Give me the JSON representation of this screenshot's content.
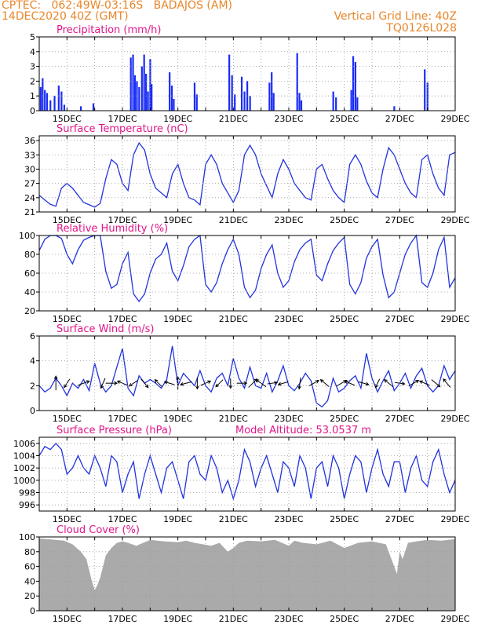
{
  "header": {
    "line1_left": "CPTEC:   062:49W-03:16S   BADAJOS (AM)",
    "line2_left": "14DEC2020 40Z (GMT)",
    "line2_right": "Vertical Grid Line: 40Z",
    "line3_right": "TQ0126L028",
    "model_altitude": "Model Altitude: 53.0537 m"
  },
  "colors": {
    "header": "#e8862a",
    "title": "#e0168a",
    "line": "#2233dd",
    "bar": "#1a2cf5",
    "cloud": "#aaaaaa",
    "grid": "#999999"
  },
  "x_axis": {
    "ticks": [
      {
        "label": "15DEC",
        "day": 1
      },
      {
        "label": "17DEC",
        "day": 3
      },
      {
        "label": "19DEC",
        "day": 5
      },
      {
        "label": "21DEC",
        "day": 7
      },
      {
        "label": "23DEC",
        "day": 9
      },
      {
        "label": "25DEC",
        "day": 11
      },
      {
        "label": "27DEC",
        "day": 13
      },
      {
        "label": "29DEC",
        "day": 15
      }
    ],
    "range": [
      0,
      15
    ]
  },
  "chart_data": [
    {
      "type": "bar",
      "title": "Precipitation (mm/h)",
      "ylim": [
        0,
        5
      ],
      "yticks": [
        0,
        1,
        2,
        3,
        4,
        5
      ],
      "x": [
        0.05,
        0.12,
        0.2,
        0.28,
        0.4,
        0.55,
        0.7,
        0.8,
        0.9,
        1.5,
        1.95,
        3.3,
        3.38,
        3.45,
        3.52,
        3.6,
        3.7,
        3.78,
        3.85,
        3.92,
        4.0,
        4.05,
        4.7,
        4.78,
        4.85,
        5.6,
        5.68,
        6.85,
        6.95,
        7.05,
        7.3,
        7.4,
        7.5,
        7.6,
        8.3,
        8.38,
        8.45,
        9.3,
        9.38,
        9.45,
        10.6,
        10.7,
        11.25,
        11.32,
        11.4,
        11.47,
        12.8,
        13.9,
        14.0
      ],
      "values": [
        1.6,
        2.2,
        1.4,
        1.2,
        0.7,
        1.0,
        1.7,
        1.3,
        0.4,
        0.3,
        0.5,
        3.6,
        3.8,
        2.4,
        2.0,
        1.6,
        3.0,
        3.8,
        2.5,
        1.3,
        3.5,
        1.8,
        2.6,
        1.7,
        0.8,
        1.9,
        1.1,
        3.8,
        2.4,
        1.1,
        2.3,
        1.3,
        2.0,
        1.0,
        1.9,
        2.6,
        1.2,
        3.9,
        1.2,
        0.7,
        1.3,
        0.9,
        1.4,
        3.7,
        3.3,
        0.9,
        0.3,
        2.8,
        1.9
      ]
    },
    {
      "type": "line",
      "title": "Surface Temperature (nC)",
      "ylim": [
        21,
        37
      ],
      "yticks": [
        21,
        24,
        27,
        30,
        33,
        36
      ],
      "x": [
        0,
        0.2,
        0.4,
        0.6,
        0.8,
        1.0,
        1.2,
        1.4,
        1.6,
        1.8,
        2.0,
        2.2,
        2.4,
        2.6,
        2.8,
        3.0,
        3.2,
        3.4,
        3.6,
        3.8,
        4.0,
        4.2,
        4.4,
        4.6,
        4.8,
        5.0,
        5.2,
        5.4,
        5.6,
        5.8,
        6.0,
        6.2,
        6.4,
        6.6,
        6.8,
        7.0,
        7.2,
        7.4,
        7.6,
        7.8,
        8.0,
        8.2,
        8.4,
        8.6,
        8.8,
        9.0,
        9.2,
        9.4,
        9.6,
        9.8,
        10.0,
        10.2,
        10.4,
        10.6,
        10.8,
        11.0,
        11.2,
        11.4,
        11.6,
        11.8,
        12.0,
        12.2,
        12.4,
        12.6,
        12.8,
        13.0,
        13.2,
        13.4,
        13.6,
        13.8,
        14.0,
        14.2,
        14.4,
        14.6,
        14.8,
        15.0
      ],
      "values": [
        24.5,
        23.5,
        22.6,
        22.2,
        26,
        27,
        26,
        24.5,
        23,
        22.5,
        22,
        22.8,
        28,
        32,
        31,
        27,
        25.5,
        33,
        35.5,
        34,
        29,
        26,
        25,
        24,
        29,
        31,
        27,
        24,
        23.5,
        22.5,
        31,
        33,
        31,
        27,
        25,
        23,
        25.5,
        33,
        35,
        33,
        29,
        26.5,
        24,
        29,
        32,
        30,
        27,
        25.5,
        24,
        23.5,
        30,
        31,
        28,
        25.5,
        24,
        23,
        31,
        33,
        31,
        27.5,
        25,
        24,
        30,
        34.5,
        33,
        30,
        27,
        25,
        24,
        32,
        33,
        29,
        26,
        24.5,
        33,
        33.5
      ],
      "series_color": "line"
    },
    {
      "type": "line",
      "title": "Relative Humidity (%)",
      "ylim": [
        20,
        100
      ],
      "yticks": [
        20,
        40,
        60,
        80,
        100
      ],
      "x": [
        0,
        0.2,
        0.4,
        0.6,
        0.8,
        1.0,
        1.2,
        1.4,
        1.6,
        1.8,
        2.0,
        2.2,
        2.4,
        2.6,
        2.8,
        3.0,
        3.2,
        3.4,
        3.6,
        3.8,
        4.0,
        4.2,
        4.4,
        4.6,
        4.8,
        5.0,
        5.2,
        5.4,
        5.6,
        5.8,
        6.0,
        6.2,
        6.4,
        6.6,
        6.8,
        7.0,
        7.2,
        7.4,
        7.6,
        7.8,
        8.0,
        8.2,
        8.4,
        8.6,
        8.8,
        9.0,
        9.2,
        9.4,
        9.6,
        9.8,
        10.0,
        10.2,
        10.4,
        10.6,
        10.8,
        11.0,
        11.2,
        11.4,
        11.6,
        11.8,
        12.0,
        12.2,
        12.4,
        12.6,
        12.8,
        13.0,
        13.2,
        13.4,
        13.6,
        13.8,
        14.0,
        14.2,
        14.4,
        14.6,
        14.8,
        15.0
      ],
      "values": [
        84,
        96,
        100,
        100,
        97,
        80,
        70,
        85,
        95,
        98,
        100,
        100,
        62,
        44,
        48,
        70,
        82,
        38,
        30,
        38,
        60,
        75,
        80,
        92,
        62,
        52,
        68,
        88,
        96,
        100,
        48,
        40,
        50,
        70,
        85,
        96,
        80,
        45,
        34,
        42,
        65,
        80,
        90,
        60,
        45,
        52,
        72,
        85,
        92,
        96,
        58,
        52,
        70,
        84,
        92,
        98,
        48,
        38,
        50,
        76,
        88,
        96,
        58,
        34,
        40,
        60,
        80,
        92,
        100,
        50,
        45,
        60,
        85,
        98,
        45,
        55
      ],
      "series_color": "line"
    },
    {
      "type": "line",
      "title": "Surface Wind (m/s)",
      "ylim": [
        0,
        6
      ],
      "yticks": [
        0,
        2,
        4,
        6
      ],
      "x": [
        0,
        0.2,
        0.4,
        0.6,
        0.8,
        1.0,
        1.2,
        1.4,
        1.6,
        1.8,
        2.0,
        2.2,
        2.4,
        2.6,
        2.8,
        3.0,
        3.2,
        3.4,
        3.6,
        3.8,
        4.0,
        4.2,
        4.4,
        4.6,
        4.8,
        5.0,
        5.2,
        5.4,
        5.6,
        5.8,
        6.0,
        6.2,
        6.4,
        6.6,
        6.8,
        7.0,
        7.2,
        7.4,
        7.6,
        7.8,
        8.0,
        8.2,
        8.4,
        8.6,
        8.8,
        9.0,
        9.2,
        9.4,
        9.6,
        9.8,
        10.0,
        10.2,
        10.4,
        10.6,
        10.8,
        11.0,
        11.2,
        11.4,
        11.6,
        11.8,
        12.0,
        12.2,
        12.4,
        12.6,
        12.8,
        13.0,
        13.2,
        13.4,
        13.6,
        13.8,
        14.0,
        14.2,
        14.4,
        14.6,
        14.8,
        15.0
      ],
      "values": [
        2.0,
        1.5,
        1.8,
        2.6,
        2.0,
        1.2,
        2.2,
        1.8,
        2.5,
        1.6,
        3.8,
        2.2,
        1.5,
        2.0,
        3.5,
        5.0,
        1.8,
        1.2,
        2.8,
        2.2,
        2.5,
        2.2,
        1.8,
        2.5,
        5.2,
        2.0,
        3.0,
        2.5,
        2.0,
        3.2,
        2.0,
        1.5,
        2.6,
        3.0,
        2.0,
        4.2,
        2.6,
        1.8,
        3.5,
        2.0,
        1.8,
        3.0,
        1.5,
        2.4,
        3.6,
        2.0,
        1.6,
        2.2,
        3.0,
        2.4,
        0.6,
        0.3,
        0.8,
        2.6,
        1.5,
        1.8,
        2.4,
        2.8,
        1.8,
        4.6,
        2.6,
        1.5,
        2.4,
        3.2,
        1.6,
        2.2,
        3.0,
        1.8,
        2.8,
        3.4,
        2.0,
        1.5,
        2.0,
        3.6,
        2.5,
        3.2
      ],
      "vectors": [
        {
          "day": 0.6,
          "dx": 0,
          "dy": -1
        },
        {
          "day": 1.0,
          "dx": -0.4,
          "dy": 0.6
        },
        {
          "day": 1.6,
          "dx": 0.8,
          "dy": -0.3
        },
        {
          "day": 2.3,
          "dx": -0.3,
          "dy": 0.7
        },
        {
          "day": 2.6,
          "dx": 0.8,
          "dy": 0
        },
        {
          "day": 3.0,
          "dx": -0.7,
          "dy": -0.3
        },
        {
          "day": 3.4,
          "dx": -0.6,
          "dy": 0.4
        },
        {
          "day": 3.8,
          "dx": 0.5,
          "dy": 0.6
        },
        {
          "day": 4.3,
          "dx": -0.5,
          "dy": -0.5
        },
        {
          "day": 4.7,
          "dx": -0.7,
          "dy": -0.2
        },
        {
          "day": 5.0,
          "dx": 0,
          "dy": -0.9
        },
        {
          "day": 5.3,
          "dx": -0.8,
          "dy": 0.2
        },
        {
          "day": 5.7,
          "dx": 0,
          "dy": 0.8
        },
        {
          "day": 6.0,
          "dx": 0.7,
          "dy": -0.3
        },
        {
          "day": 6.5,
          "dx": -0.5,
          "dy": 0.5
        },
        {
          "day": 6.9,
          "dx": 0,
          "dy": 0.7
        },
        {
          "day": 7.3,
          "dx": 0.7,
          "dy": 0
        },
        {
          "day": 7.7,
          "dx": 0.6,
          "dy": -0.6
        },
        {
          "day": 8.0,
          "dx": -0.7,
          "dy": -0.5
        },
        {
          "day": 8.4,
          "dx": 0.7,
          "dy": -0.1
        },
        {
          "day": 8.8,
          "dx": -0.7,
          "dy": 0.2
        },
        {
          "day": 9.4,
          "dx": -0.1,
          "dy": 0.8
        },
        {
          "day": 9.9,
          "dx": 0.7,
          "dy": -0.4
        },
        {
          "day": 10.3,
          "dx": -0.6,
          "dy": -0.5
        },
        {
          "day": 10.9,
          "dx": 0.7,
          "dy": -0.4
        },
        {
          "day": 11.2,
          "dx": -0.7,
          "dy": -0.3
        },
        {
          "day": 11.7,
          "dx": 0.7,
          "dy": 0.2
        },
        {
          "day": 12.2,
          "dx": -0.3,
          "dy": 0.6
        },
        {
          "day": 12.6,
          "dx": -0.6,
          "dy": -0.5
        },
        {
          "day": 13.0,
          "dx": 0.7,
          "dy": 0.1
        },
        {
          "day": 13.5,
          "dx": 0.7,
          "dy": -0.4
        },
        {
          "day": 13.9,
          "dx": -0.7,
          "dy": -0.3
        },
        {
          "day": 14.3,
          "dx": 0.6,
          "dy": 0.5
        },
        {
          "day": 14.7,
          "dx": -0.5,
          "dy": -0.6
        }
      ],
      "series_color": "line"
    },
    {
      "type": "line",
      "title": "Surface Pressure (hPa)",
      "ylim": [
        995,
        1007
      ],
      "yticks": [
        996,
        998,
        1000,
        1002,
        1004,
        1006
      ],
      "x": [
        0,
        0.2,
        0.4,
        0.6,
        0.8,
        1.0,
        1.2,
        1.4,
        1.6,
        1.8,
        2.0,
        2.2,
        2.4,
        2.6,
        2.8,
        3.0,
        3.2,
        3.4,
        3.6,
        3.8,
        4.0,
        4.2,
        4.4,
        4.6,
        4.8,
        5.0,
        5.2,
        5.4,
        5.6,
        5.8,
        6.0,
        6.2,
        6.4,
        6.6,
        6.8,
        7.0,
        7.2,
        7.4,
        7.6,
        7.8,
        8.0,
        8.2,
        8.4,
        8.6,
        8.8,
        9.0,
        9.2,
        9.4,
        9.6,
        9.8,
        10.0,
        10.2,
        10.4,
        10.6,
        10.8,
        11.0,
        11.2,
        11.4,
        11.6,
        11.8,
        12.0,
        12.2,
        12.4,
        12.6,
        12.8,
        13.0,
        13.2,
        13.4,
        13.6,
        13.8,
        14.0,
        14.2,
        14.4,
        14.6,
        14.8,
        15.0
      ],
      "values": [
        1004,
        1005.5,
        1005,
        1006,
        1005,
        1001,
        1002,
        1004,
        1002,
        1001,
        1004,
        1002,
        999,
        1004,
        1003,
        998,
        1001,
        1003,
        997,
        1001,
        1004,
        1001,
        998,
        1002,
        1003,
        1000,
        997,
        1003,
        1004,
        1001,
        1000,
        1004,
        1002,
        998,
        1000,
        997,
        1000,
        1005,
        1003,
        999,
        1002,
        1004,
        1001,
        998,
        1003,
        1002,
        999,
        1004,
        1002,
        997,
        1002,
        1003,
        999,
        1004,
        1002,
        997,
        1001,
        1004,
        1003,
        998,
        1002,
        1005,
        1001,
        999,
        1003,
        1003,
        998,
        1002,
        1004,
        1000,
        999,
        1003,
        1005,
        1001,
        998,
        1000
      ],
      "series_color": "line"
    },
    {
      "type": "area",
      "title": "Cloud Cover (%)",
      "ylim": [
        0,
        100
      ],
      "yticks": [
        0,
        20,
        40,
        60,
        80,
        100
      ],
      "x": [
        0,
        0.3,
        0.6,
        0.9,
        1.2,
        1.5,
        1.7,
        1.9,
        2.0,
        2.1,
        2.2,
        2.3,
        2.4,
        2.6,
        2.8,
        3.0,
        3.2,
        3.5,
        4.0,
        4.5,
        5.0,
        5.3,
        5.6,
        5.9,
        6.2,
        6.5,
        6.8,
        7.0,
        7.2,
        7.5,
        8.0,
        8.5,
        9.0,
        9.2,
        9.5,
        10.0,
        10.5,
        11.0,
        11.5,
        12.0,
        12.5,
        12.8,
        12.9,
        13.0,
        13.1,
        13.3,
        13.6,
        14.0,
        14.5,
        15.0
      ],
      "values": [
        98,
        97,
        96,
        95,
        90,
        80,
        70,
        40,
        28,
        35,
        45,
        60,
        75,
        85,
        92,
        94,
        92,
        88,
        96,
        94,
        93,
        95,
        92,
        90,
        88,
        92,
        80,
        85,
        92,
        95,
        94,
        96,
        88,
        95,
        92,
        90,
        95,
        85,
        92,
        94,
        90,
        60,
        50,
        80,
        70,
        92,
        94,
        96,
        95,
        97
      ],
      "series_color": "cloud"
    }
  ]
}
